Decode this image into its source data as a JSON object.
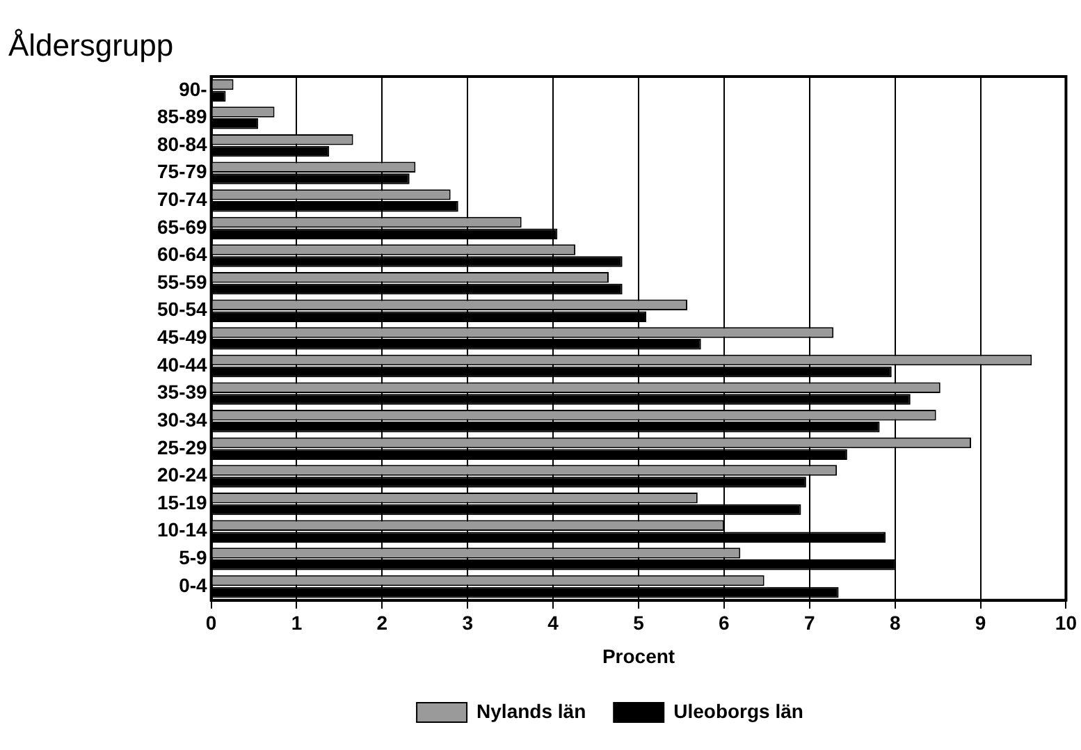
{
  "chart_data": {
    "type": "bar",
    "orientation": "horizontal",
    "ylabel": "Åldersgrupp",
    "xlabel": "Procent",
    "categories": [
      "90-",
      "85-89",
      "80-84",
      "75-79",
      "70-74",
      "65-69",
      "60-64",
      "55-59",
      "50-54",
      "45-49",
      "40-44",
      "35-39",
      "30-34",
      "25-29",
      "20-24",
      "15-19",
      "10-14",
      "5-9",
      "0-4"
    ],
    "series": [
      {
        "name": "Nylands län",
        "color": "#9a9a9a",
        "values": [
          0.26,
          0.74,
          1.66,
          2.39,
          2.8,
          3.63,
          4.26,
          4.65,
          5.57,
          7.28,
          9.6,
          8.53,
          8.48,
          8.89,
          7.32,
          5.69,
          6.0,
          6.19,
          6.47
        ]
      },
      {
        "name": "Uleoborgs län",
        "color": "#000000",
        "values": [
          0.17,
          0.55,
          1.38,
          2.32,
          2.89,
          4.05,
          4.81,
          4.81,
          5.09,
          5.73,
          7.96,
          8.18,
          7.82,
          7.44,
          6.96,
          6.9,
          7.89,
          8.01,
          7.34
        ]
      }
    ],
    "xlim": [
      0,
      10
    ],
    "xticks": [
      0,
      1,
      2,
      3,
      4,
      5,
      6,
      7,
      8,
      9,
      10
    ],
    "grid": "x",
    "legend": "bottom"
  }
}
